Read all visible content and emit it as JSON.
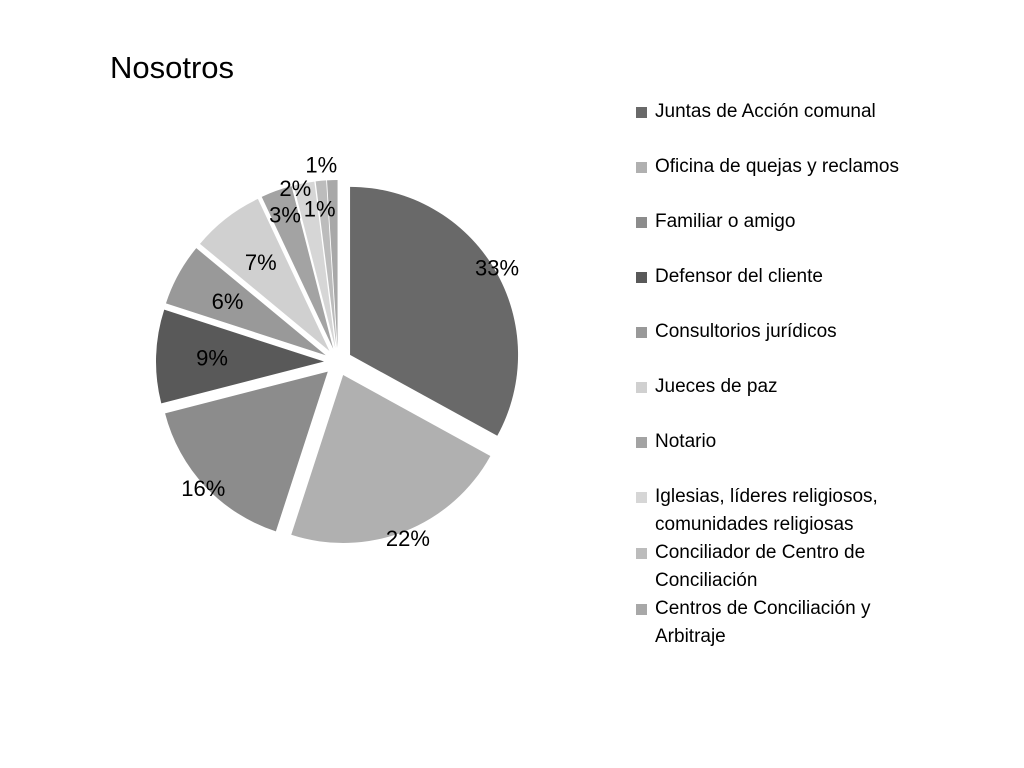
{
  "chart_data": {
    "type": "pie",
    "title": "Nosotros",
    "exploded": true,
    "legend_position": "right",
    "slices": [
      {
        "label": "Juntas de Acción comunal",
        "value": 33,
        "display": "33%",
        "color": "#696969"
      },
      {
        "label": "Oficina de quejas y reclamos",
        "value": 22,
        "display": "22%",
        "color": "#b0b0b0"
      },
      {
        "label": "Familiar o amigo",
        "value": 16,
        "display": "16%",
        "color": "#8c8c8c"
      },
      {
        "label": "Defensor del cliente",
        "value": 9,
        "display": "9%",
        "color": "#595959"
      },
      {
        "label": "Consultorios jurídicos",
        "value": 6,
        "display": "6%",
        "color": "#999999"
      },
      {
        "label": "Jueces de paz",
        "value": 7,
        "display": "7%",
        "color": "#d0d0d0"
      },
      {
        "label": "Notario",
        "value": 3,
        "display": "3%",
        "color": "#a3a3a3"
      },
      {
        "label": "Iglesias, líderes religiosos, comunidades religiosas",
        "value": 2,
        "display": "2%",
        "color": "#d6d6d6"
      },
      {
        "label": "Conciliador de Centro de Conciliación",
        "value": 1,
        "display": "1%",
        "color": "#bcbcbc"
      },
      {
        "label": "Centros de Conciliación y Arbitraje",
        "value": 1,
        "display": "1%",
        "color": "#a8a8a8"
      }
    ]
  }
}
